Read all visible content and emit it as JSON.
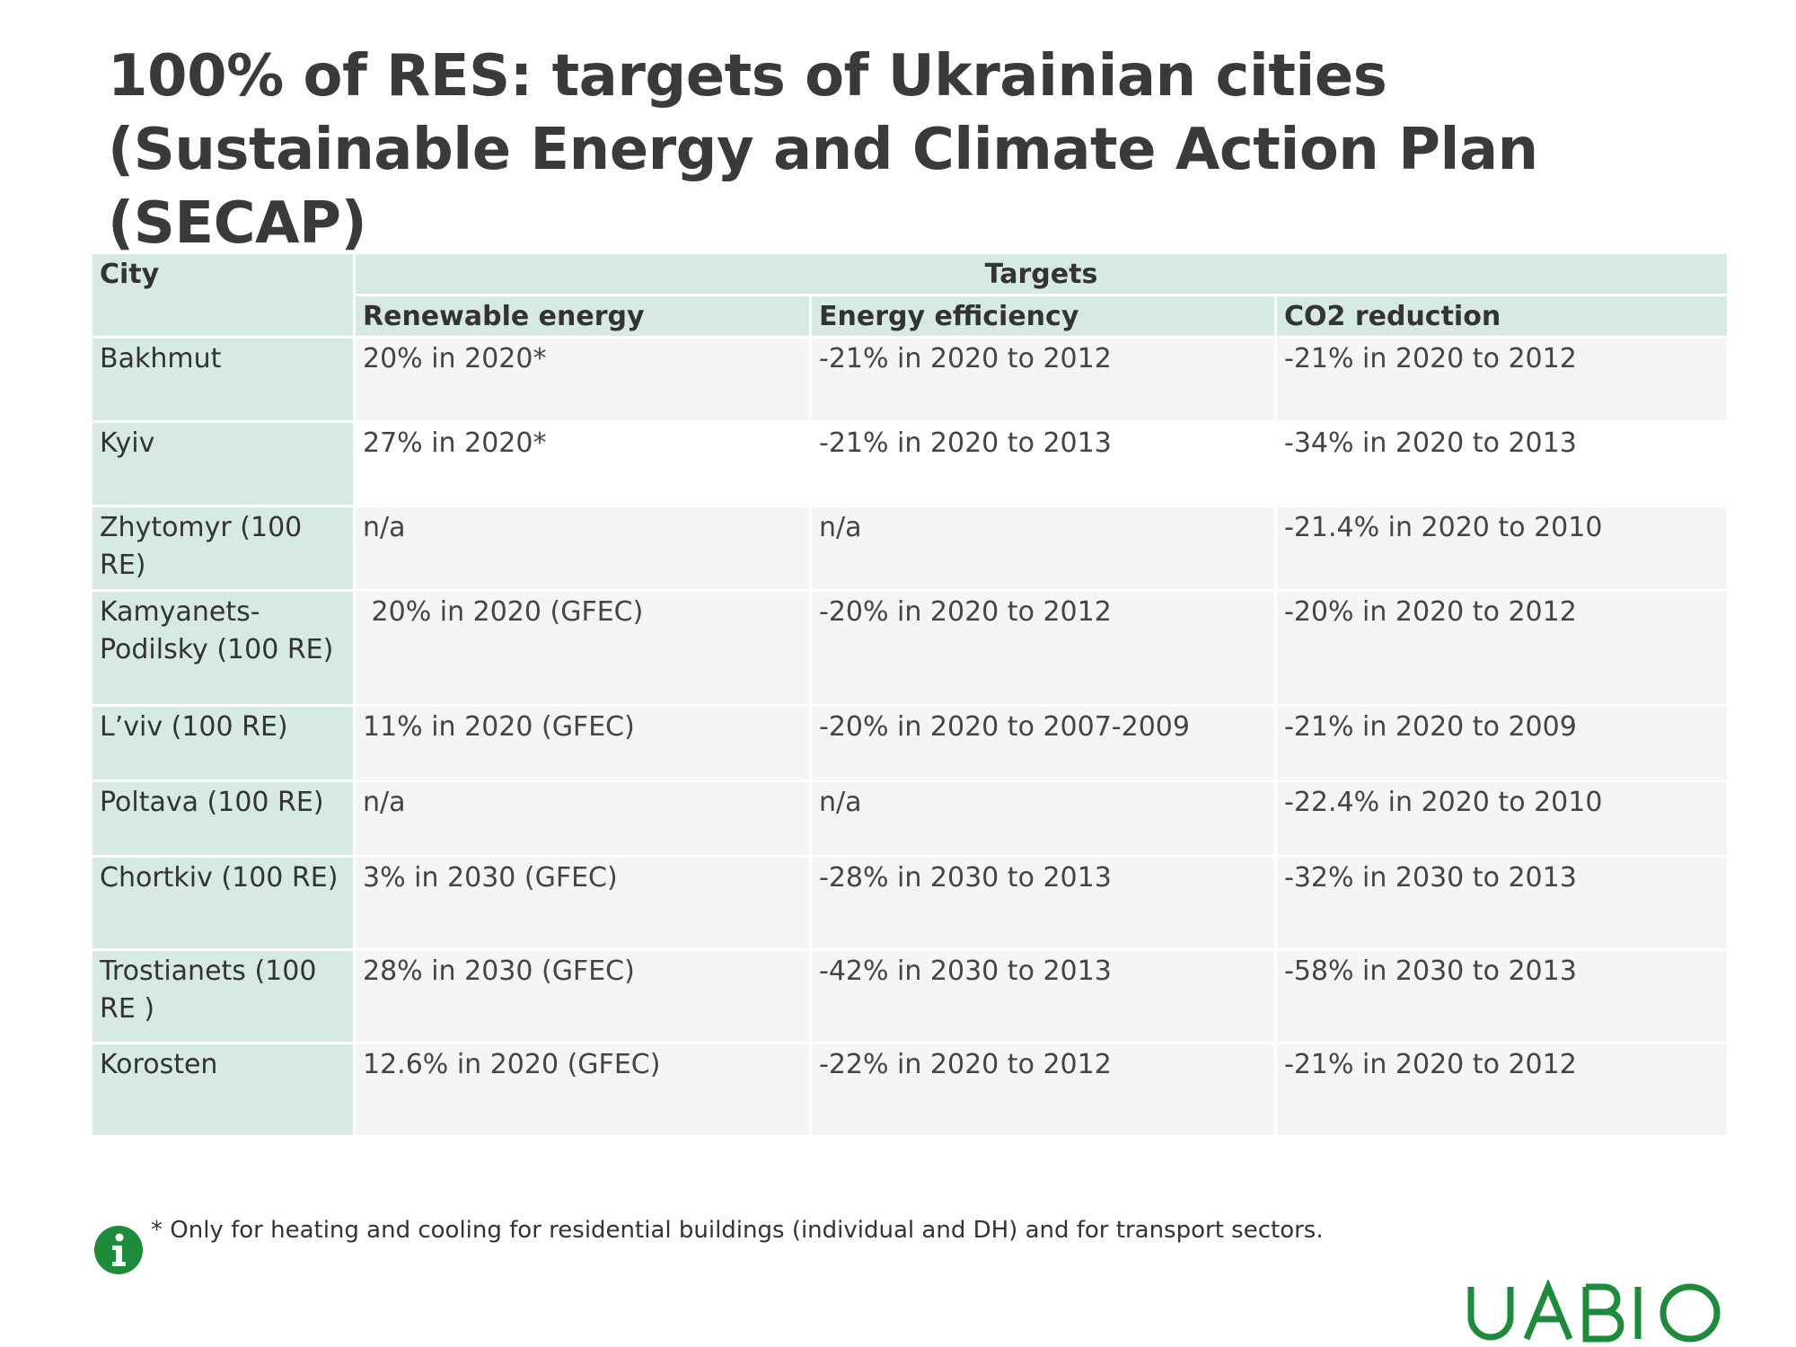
{
  "title": "100% of RES: targets of Ukrainian cities (Sustainable Energy and Climate Action Plan (SECAP)",
  "table": {
    "headers": {
      "city": "City",
      "targets": "Targets",
      "renewable": "Renewable energy",
      "efficiency": "Energy efficiency",
      "co2": "CO2 reduction"
    },
    "rows": [
      {
        "city": "Bakhmut",
        "renewable": "20% in 2020*",
        "efficiency": "-21% in 2020 to 2012",
        "co2": "-21% in 2020 to 2012"
      },
      {
        "city": "Kyiv",
        "renewable": "27% in 2020*",
        "efficiency": "-21% in 2020 to 2013",
        "co2": "-34% in 2020 to 2013"
      },
      {
        "city": "Zhytomyr (100 RE)",
        "renewable": "n/a",
        "efficiency": "n/a",
        "co2": "-21.4% in 2020 to 2010"
      },
      {
        "city": "Kamyanets-Podilsky (100 RE)",
        "renewable": " 20% in 2020 (GFEC)",
        "efficiency": "-20% in 2020 to 2012",
        "co2": "-20% in 2020 to 2012"
      },
      {
        "city": "L’viv (100 RE)",
        "renewable": "11% in 2020 (GFEC)",
        "efficiency": "-20% in 2020 to 2007-2009",
        "co2": "-21% in 2020 to 2009"
      },
      {
        "city": "Poltava (100 RE)",
        "renewable": "n/a",
        "efficiency": "n/a",
        "co2": "-22.4% in 2020 to 2010"
      },
      {
        "city": "Chortkiv (100 RE)",
        "renewable": "3% in 2030 (GFEC)",
        "efficiency": "-28% in 2030 to 2013",
        "co2": "-32% in 2030 to 2013"
      },
      {
        "city": "Trostianets (100 RE )",
        "renewable": "28% in 2030 (GFEC)",
        "efficiency": "-42% in 2030 to 2013",
        "co2": "-58% in 2030 to 2013"
      },
      {
        "city": "Korosten",
        "renewable": "12.6% in 2020 (GFEC)",
        "efficiency": "-22% in 2020 to 2012",
        "co2": "-21% in 2020 to 2012"
      }
    ]
  },
  "footnote": {
    "icon": "info-icon",
    "text": "* Only for heating and cooling for residential buildings (individual and DH) and for transport sectors."
  },
  "logo": {
    "text": "UABIO",
    "color": "#1e8b3c"
  },
  "colors": {
    "header_bg": "#d7eae1",
    "cell_bg": "#f5f5f5",
    "title": "#3a3a3a",
    "icon": "#1e8b3c"
  }
}
